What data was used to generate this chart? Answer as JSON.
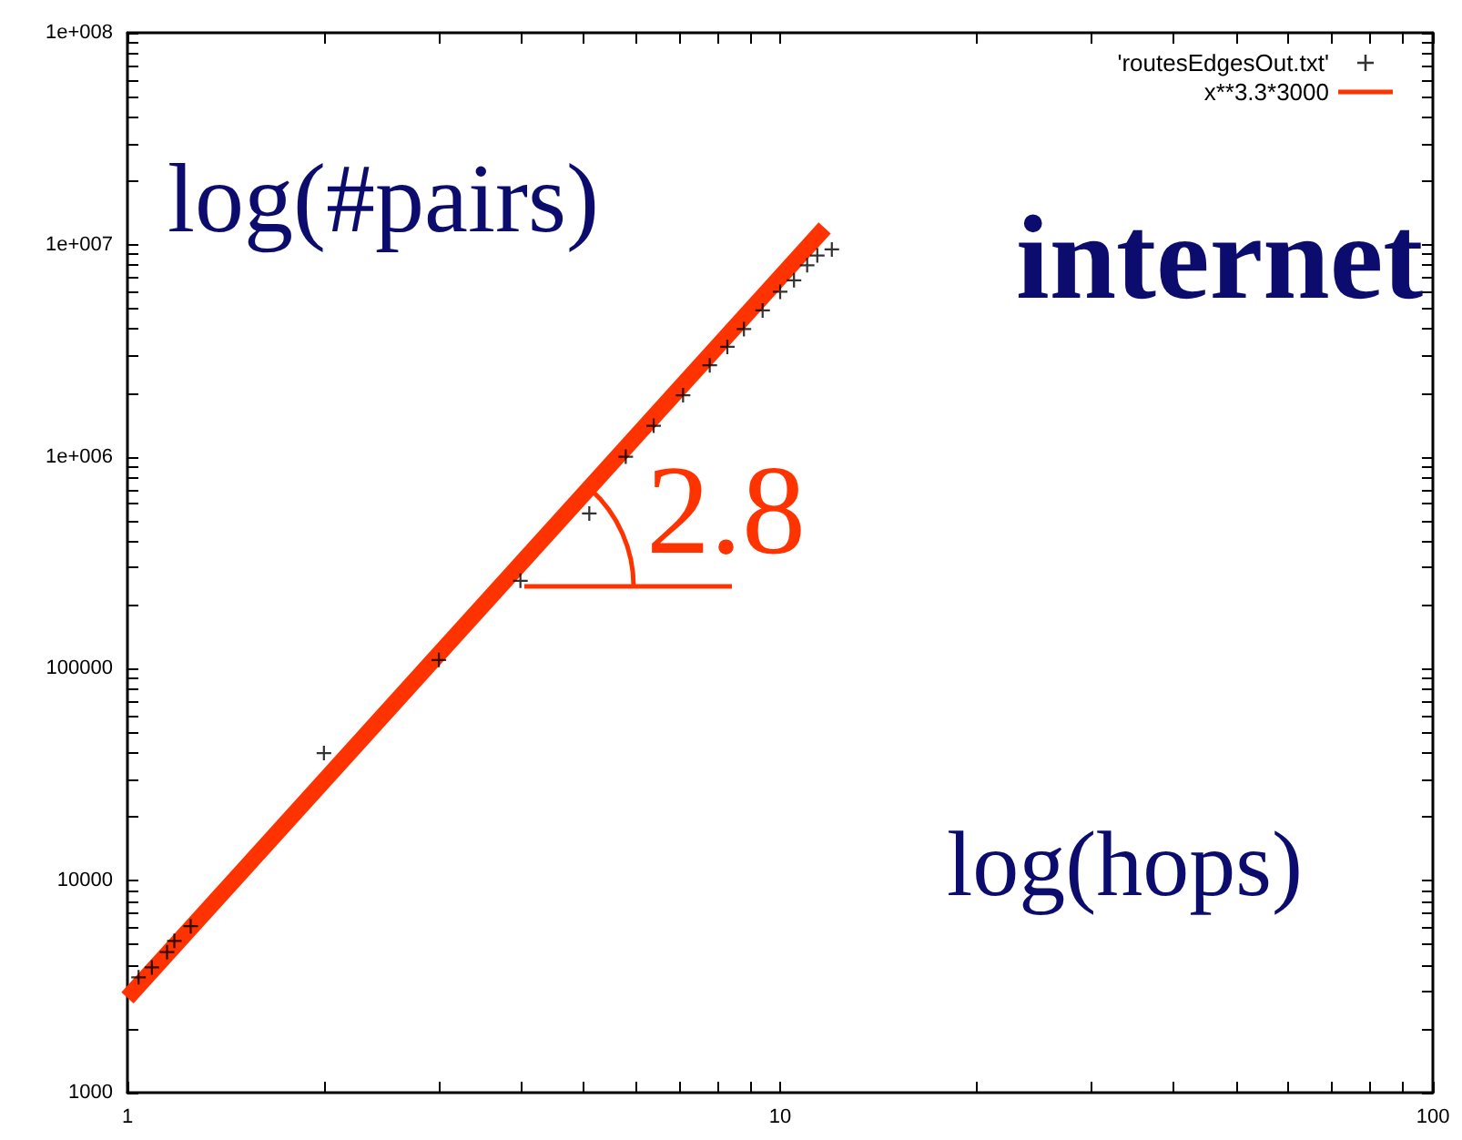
{
  "chart_data": {
    "type": "scatter",
    "title": "internet",
    "xlabel": "log(hops)",
    "ylabel": "log(#pairs)",
    "annotations": [
      "2.8"
    ],
    "log": "xy",
    "legend": "top right",
    "marker": "cross",
    "line_style": "solid",
    "xlim": [
      1,
      100
    ],
    "ylim": [
      1000,
      100000000
    ],
    "xticks": [
      1,
      {
        "value": 2,
        "label": null
      },
      {
        "value": 3,
        "label": null
      },
      {
        "value": 4,
        "label": null
      },
      {
        "value": 5,
        "label": null
      },
      {
        "value": 6,
        "label": null
      },
      {
        "value": 7,
        "label": null
      },
      {
        "value": 8,
        "label": null
      },
      {
        "value": 9,
        "label": null
      },
      10,
      {
        "value": 20,
        "label": null
      },
      {
        "value": 30,
        "label": null
      },
      {
        "value": 40,
        "label": null
      },
      {
        "value": 50,
        "label": null
      },
      {
        "value": 60,
        "label": null
      },
      {
        "value": 70,
        "label": null
      },
      {
        "value": 80,
        "label": null
      },
      {
        "value": 90,
        "label": null
      },
      100
    ],
    "yticks": [
      1000,
      {
        "value": 2000,
        "label": null
      },
      {
        "value": 3000,
        "label": null
      },
      {
        "value": 4000,
        "label": null
      },
      {
        "value": 5000,
        "label": null
      },
      {
        "value": 6000,
        "label": null
      },
      {
        "value": 7000,
        "label": null
      },
      {
        "value": 8000,
        "label": null
      },
      {
        "value": 9000,
        "label": null
      },
      10000,
      {
        "value": 20000,
        "label": null
      },
      {
        "value": 30000,
        "label": null
      },
      {
        "value": 40000,
        "label": null
      },
      {
        "value": 50000,
        "label": null
      },
      {
        "value": 60000,
        "label": null
      },
      {
        "value": 70000,
        "label": null
      },
      {
        "value": 80000,
        "label": null
      },
      {
        "value": 90000,
        "label": null
      },
      100000,
      {
        "value": 200000,
        "label": null
      },
      {
        "value": 300000,
        "label": null
      },
      {
        "value": 400000,
        "label": null
      },
      {
        "value": 500000,
        "label": null
      },
      {
        "value": 600000,
        "label": null
      },
      {
        "value": 700000,
        "label": null
      },
      {
        "value": 800000,
        "label": null
      },
      {
        "value": 900000,
        "label": null
      },
      {
        "value": 1000000,
        "label": "1e+006"
      },
      {
        "value": 2000000,
        "label": null
      },
      {
        "value": 3000000,
        "label": null
      },
      {
        "value": 4000000,
        "label": null
      },
      {
        "value": 5000000,
        "label": null
      },
      {
        "value": 6000000,
        "label": null
      },
      {
        "value": 7000000,
        "label": null
      },
      {
        "value": 8000000,
        "label": null
      },
      {
        "value": 9000000,
        "label": null
      },
      {
        "value": 10000000,
        "label": "1e+007"
      },
      {
        "value": 20000000,
        "label": null
      },
      {
        "value": 30000000,
        "label": null
      },
      {
        "value": 40000000,
        "label": null
      },
      {
        "value": 50000000,
        "label": null
      },
      {
        "value": 60000000,
        "label": null
      },
      {
        "value": 70000000,
        "label": null
      },
      {
        "value": 80000000,
        "label": null
      },
      {
        "value": 90000000,
        "label": null
      },
      {
        "value": 100000000,
        "label": "1e+008"
      }
    ],
    "series": [
      {
        "name": "'routesEdgesOut.txt'",
        "color": "#000000",
        "x": [
          1.04,
          1.09,
          1.15,
          1.18,
          1.25,
          2,
          3,
          4,
          5.1,
          5.8,
          6.4,
          7.1,
          7.8,
          8.3,
          8.8,
          9.4,
          10,
          10.5,
          11,
          11.4,
          12
        ],
        "values": [
          3500,
          3900,
          4600,
          5200,
          6100,
          40000,
          110000,
          260000,
          540000,
          1000000,
          1400000,
          1950000,
          2700000,
          3300000,
          4000000,
          4900000,
          6000000,
          6800000,
          8000000,
          8900000,
          9500000
        ]
      },
      {
        "name": "x**3.3*3000",
        "type": "line",
        "marker": "none",
        "color": "#ff3300",
        "x": [
          1,
          11.7
        ],
        "values": [
          2800,
          12000000
        ]
      }
    ]
  }
}
